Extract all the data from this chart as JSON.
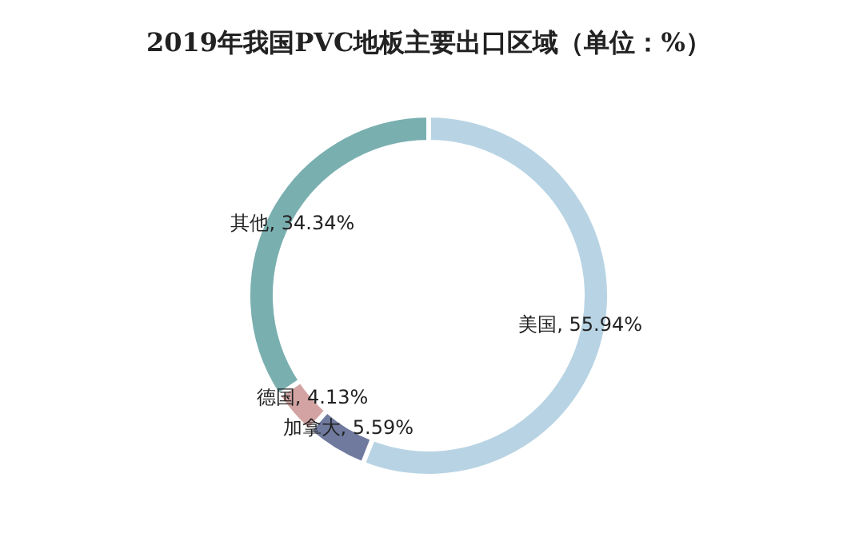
{
  "chart_data": {
    "type": "donut",
    "title": "2019年我国PVC地板主要出口区域（单位：%）",
    "categories": [
      "美国",
      "加拿大",
      "德国",
      "其他"
    ],
    "values": [
      55.94,
      5.59,
      4.13,
      34.34
    ],
    "value_labels": [
      ", 55.94%",
      ", 5.59%",
      ", 4.13%",
      ", 34.34%"
    ],
    "colors": [
      "#b8d4e4",
      "#6f7a9e",
      "#d3a3a3",
      "#7aafb0"
    ]
  }
}
